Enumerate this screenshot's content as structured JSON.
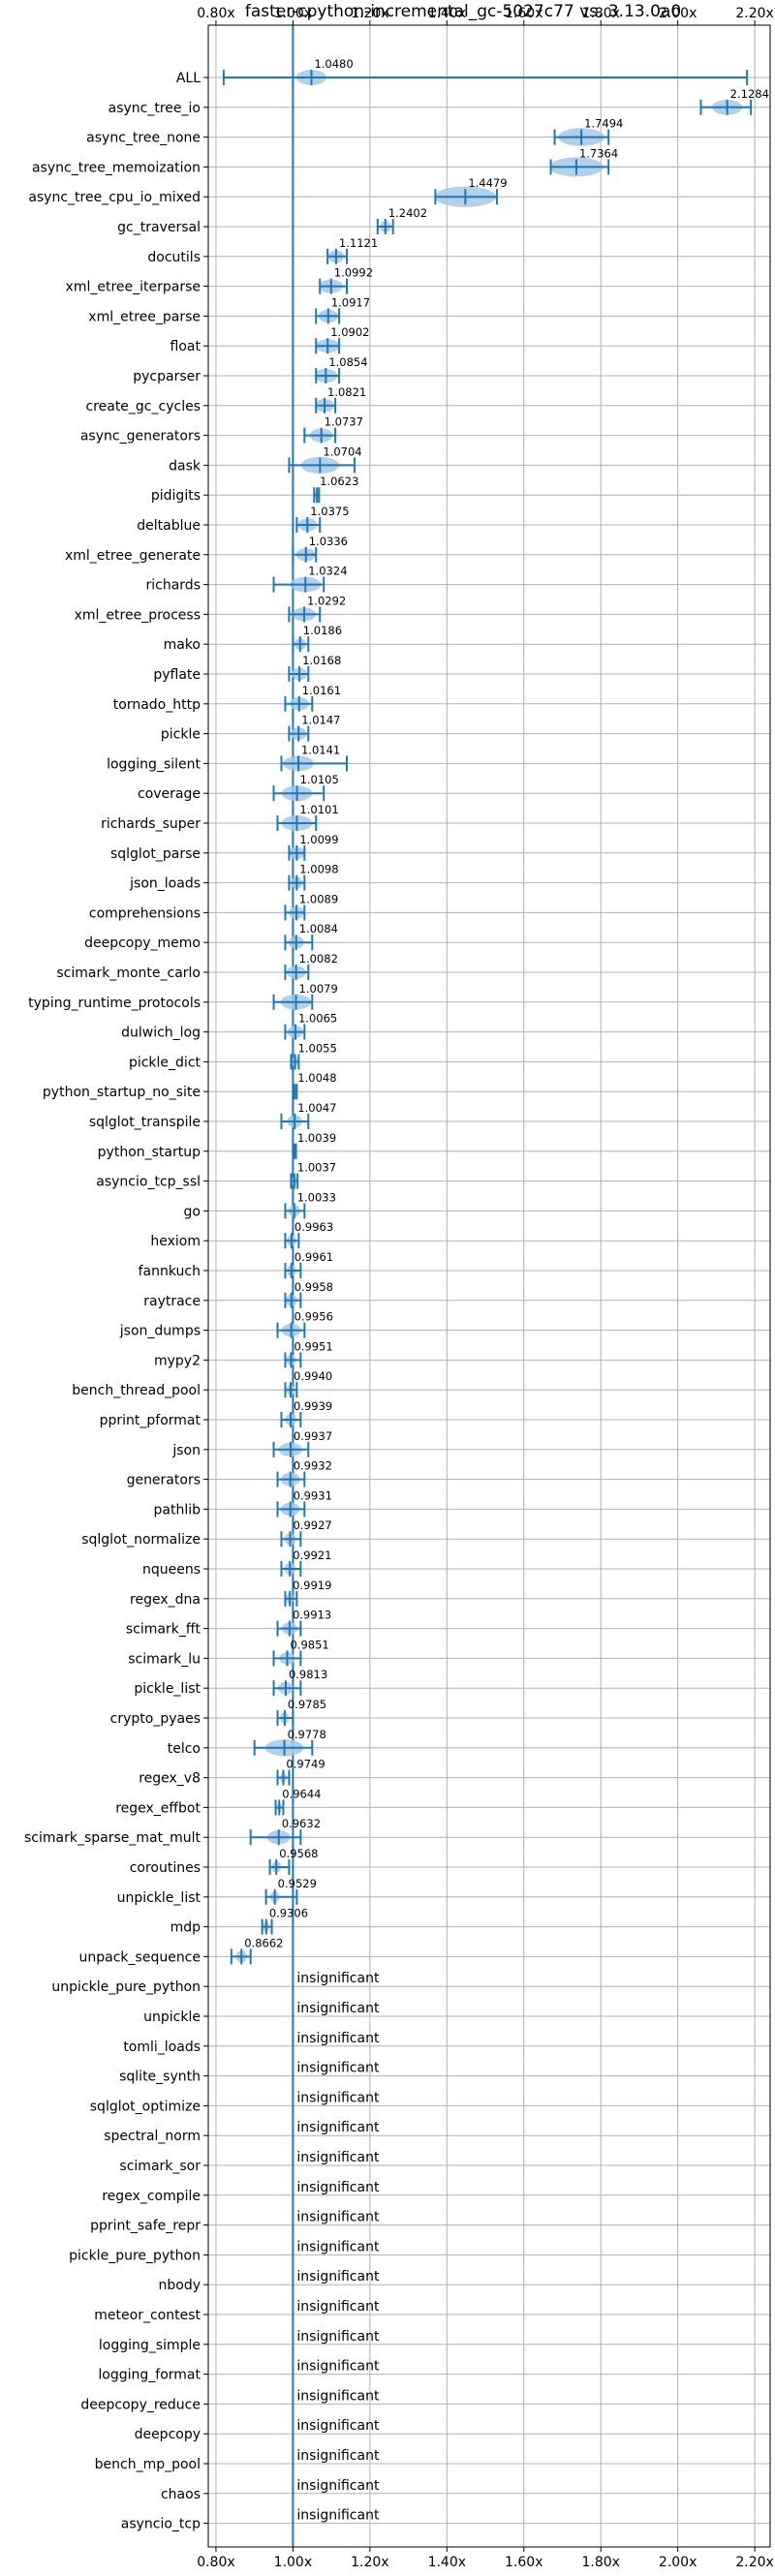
{
  "chart_data": {
    "type": "scatter",
    "title": "faster-cpython-incremental_gc-5027c77 vs. 3.13.0a0",
    "xlabel": "",
    "ylabel": "",
    "xlim": [
      0.78,
      2.24
    ],
    "x_ticks": [
      0.8,
      1.0,
      1.2,
      1.4,
      1.6,
      1.8,
      2.0,
      2.2
    ],
    "x_tick_labels": [
      "0.80x",
      "1.00x",
      "1.20x",
      "1.40x",
      "1.60x",
      "1.80x",
      "2.00x",
      "2.20x"
    ],
    "reference_line": 1.0,
    "grid": true,
    "colors": {
      "line": "#1f77b4",
      "violin": "#a6c8e6",
      "grid": "#b0b0b0"
    },
    "insignificant_text": "insignificant",
    "benchmarks": [
      {
        "name": "ALL",
        "value": 1.048,
        "label": "1.0480",
        "low": 0.82,
        "high": 2.18,
        "spread": 0.04
      },
      {
        "name": "async_tree_io",
        "value": 2.1284,
        "label": "2.1284",
        "low": 2.06,
        "high": 2.19,
        "spread": 0.04
      },
      {
        "name": "async_tree_none",
        "value": 1.7494,
        "label": "1.7494",
        "low": 1.68,
        "high": 1.82,
        "spread": 0.06
      },
      {
        "name": "async_tree_memoization",
        "value": 1.7364,
        "label": "1.7364",
        "low": 1.67,
        "high": 1.82,
        "spread": 0.07
      },
      {
        "name": "async_tree_cpu_io_mixed",
        "value": 1.4479,
        "label": "1.4479",
        "low": 1.37,
        "high": 1.53,
        "spread": 0.08
      },
      {
        "name": "gc_traversal",
        "value": 1.2402,
        "label": "1.2402",
        "low": 1.22,
        "high": 1.26,
        "spread": 0.015
      },
      {
        "name": "docutils",
        "value": 1.1121,
        "label": "1.1121",
        "low": 1.09,
        "high": 1.14,
        "spread": 0.02
      },
      {
        "name": "xml_etree_iterparse",
        "value": 1.0992,
        "label": "1.0992",
        "low": 1.07,
        "high": 1.14,
        "spread": 0.03
      },
      {
        "name": "xml_etree_parse",
        "value": 1.0917,
        "label": "1.0917",
        "low": 1.06,
        "high": 1.12,
        "spread": 0.025
      },
      {
        "name": "float",
        "value": 1.0902,
        "label": "1.0902",
        "low": 1.06,
        "high": 1.12,
        "spread": 0.03
      },
      {
        "name": "pycparser",
        "value": 1.0854,
        "label": "1.0854",
        "low": 1.06,
        "high": 1.12,
        "spread": 0.03
      },
      {
        "name": "create_gc_cycles",
        "value": 1.0821,
        "label": "1.0821",
        "low": 1.06,
        "high": 1.11,
        "spread": 0.025
      },
      {
        "name": "async_generators",
        "value": 1.0737,
        "label": "1.0737",
        "low": 1.03,
        "high": 1.11,
        "spread": 0.03
      },
      {
        "name": "dask",
        "value": 1.0704,
        "label": "1.0704",
        "low": 0.99,
        "high": 1.16,
        "spread": 0.05
      },
      {
        "name": "pidigits",
        "value": 1.0623,
        "label": "1.0623",
        "low": 1.055,
        "high": 1.068,
        "spread": 0.005
      },
      {
        "name": "deltablue",
        "value": 1.0375,
        "label": "1.0375",
        "low": 1.01,
        "high": 1.07,
        "spread": 0.025
      },
      {
        "name": "xml_etree_generate",
        "value": 1.0336,
        "label": "1.0336",
        "low": 1.0,
        "high": 1.06,
        "spread": 0.025
      },
      {
        "name": "richards",
        "value": 1.0324,
        "label": "1.0324",
        "low": 0.95,
        "high": 1.08,
        "spread": 0.04
      },
      {
        "name": "xml_etree_process",
        "value": 1.0292,
        "label": "1.0292",
        "low": 0.99,
        "high": 1.07,
        "spread": 0.03
      },
      {
        "name": "mako",
        "value": 1.0186,
        "label": "1.0186",
        "low": 1.0,
        "high": 1.04,
        "spread": 0.015
      },
      {
        "name": "pyflate",
        "value": 1.0168,
        "label": "1.0168",
        "low": 0.99,
        "high": 1.04,
        "spread": 0.02
      },
      {
        "name": "tornado_http",
        "value": 1.0161,
        "label": "1.0161",
        "low": 0.98,
        "high": 1.05,
        "spread": 0.025
      },
      {
        "name": "pickle",
        "value": 1.0147,
        "label": "1.0147",
        "low": 0.99,
        "high": 1.04,
        "spread": 0.02
      },
      {
        "name": "logging_silent",
        "value": 1.0141,
        "label": "1.0141",
        "low": 0.97,
        "high": 1.14,
        "spread": 0.04
      },
      {
        "name": "coverage",
        "value": 1.0105,
        "label": "1.0105",
        "low": 0.95,
        "high": 1.08,
        "spread": 0.04
      },
      {
        "name": "richards_super",
        "value": 1.0101,
        "label": "1.0101",
        "low": 0.96,
        "high": 1.06,
        "spread": 0.04
      },
      {
        "name": "sqlglot_parse",
        "value": 1.0099,
        "label": "1.0099",
        "low": 0.99,
        "high": 1.03,
        "spread": 0.02
      },
      {
        "name": "json_loads",
        "value": 1.0098,
        "label": "1.0098",
        "low": 0.99,
        "high": 1.03,
        "spread": 0.015
      },
      {
        "name": "comprehensions",
        "value": 1.0089,
        "label": "1.0089",
        "low": 0.98,
        "high": 1.03,
        "spread": 0.02
      },
      {
        "name": "deepcopy_memo",
        "value": 1.0084,
        "label": "1.0084",
        "low": 0.98,
        "high": 1.05,
        "spread": 0.02
      },
      {
        "name": "scimark_monte_carlo",
        "value": 1.0082,
        "label": "1.0082",
        "low": 0.98,
        "high": 1.04,
        "spread": 0.025
      },
      {
        "name": "typing_runtime_protocols",
        "value": 1.0079,
        "label": "1.0079",
        "low": 0.95,
        "high": 1.05,
        "spread": 0.04
      },
      {
        "name": "dulwich_log",
        "value": 1.0065,
        "label": "1.0065",
        "low": 0.98,
        "high": 1.03,
        "spread": 0.02
      },
      {
        "name": "pickle_dict",
        "value": 1.0055,
        "label": "1.0055",
        "low": 0.995,
        "high": 1.015,
        "spread": 0.008
      },
      {
        "name": "python_startup_no_site",
        "value": 1.0048,
        "label": "1.0048",
        "low": 1.0,
        "high": 1.01,
        "spread": 0.003
      },
      {
        "name": "sqlglot_transpile",
        "value": 1.0047,
        "label": "1.0047",
        "low": 0.97,
        "high": 1.04,
        "spread": 0.02
      },
      {
        "name": "python_startup",
        "value": 1.0039,
        "label": "1.0039",
        "low": 1.0,
        "high": 1.008,
        "spread": 0.003
      },
      {
        "name": "asyncio_tcp_ssl",
        "value": 1.0037,
        "label": "1.0037",
        "low": 0.995,
        "high": 1.012,
        "spread": 0.006
      },
      {
        "name": "go",
        "value": 1.0033,
        "label": "1.0033",
        "low": 0.98,
        "high": 1.03,
        "spread": 0.015
      },
      {
        "name": "hexiom",
        "value": 0.9963,
        "label": "0.9963",
        "low": 0.98,
        "high": 1.015,
        "spread": 0.012
      },
      {
        "name": "fannkuch",
        "value": 0.9961,
        "label": "0.9961",
        "low": 0.98,
        "high": 1.02,
        "spread": 0.012
      },
      {
        "name": "raytrace",
        "value": 0.9958,
        "label": "0.9958",
        "low": 0.98,
        "high": 1.02,
        "spread": 0.015
      },
      {
        "name": "json_dumps",
        "value": 0.9956,
        "label": "0.9956",
        "low": 0.96,
        "high": 1.03,
        "spread": 0.025
      },
      {
        "name": "mypy2",
        "value": 0.9951,
        "label": "0.9951",
        "low": 0.98,
        "high": 1.02,
        "spread": 0.012
      },
      {
        "name": "bench_thread_pool",
        "value": 0.994,
        "label": "0.9940",
        "low": 0.98,
        "high": 1.01,
        "spread": 0.01
      },
      {
        "name": "pprint_pformat",
        "value": 0.9939,
        "label": "0.9939",
        "low": 0.97,
        "high": 1.02,
        "spread": 0.015
      },
      {
        "name": "json",
        "value": 0.9937,
        "label": "0.9937",
        "low": 0.95,
        "high": 1.04,
        "spread": 0.03
      },
      {
        "name": "generators",
        "value": 0.9932,
        "label": "0.9932",
        "low": 0.96,
        "high": 1.03,
        "spread": 0.025
      },
      {
        "name": "pathlib",
        "value": 0.9931,
        "label": "0.9931",
        "low": 0.96,
        "high": 1.03,
        "spread": 0.025
      },
      {
        "name": "sqlglot_normalize",
        "value": 0.9927,
        "label": "0.9927",
        "low": 0.97,
        "high": 1.02,
        "spread": 0.015
      },
      {
        "name": "nqueens",
        "value": 0.9921,
        "label": "0.9921",
        "low": 0.97,
        "high": 1.02,
        "spread": 0.015
      },
      {
        "name": "regex_dna",
        "value": 0.9919,
        "label": "0.9919",
        "low": 0.98,
        "high": 1.01,
        "spread": 0.01
      },
      {
        "name": "scimark_fft",
        "value": 0.9913,
        "label": "0.9913",
        "low": 0.96,
        "high": 1.02,
        "spread": 0.02
      },
      {
        "name": "scimark_lu",
        "value": 0.9851,
        "label": "0.9851",
        "low": 0.95,
        "high": 1.02,
        "spread": 0.02
      },
      {
        "name": "pickle_list",
        "value": 0.9813,
        "label": "0.9813",
        "low": 0.95,
        "high": 1.02,
        "spread": 0.02
      },
      {
        "name": "crypto_pyaes",
        "value": 0.9785,
        "label": "0.9785",
        "low": 0.96,
        "high": 1.0,
        "spread": 0.012
      },
      {
        "name": "telco",
        "value": 0.9778,
        "label": "0.9778",
        "low": 0.9,
        "high": 1.05,
        "spread": 0.05
      },
      {
        "name": "regex_v8",
        "value": 0.9749,
        "label": "0.9749",
        "low": 0.96,
        "high": 0.99,
        "spread": 0.008
      },
      {
        "name": "regex_effbot",
        "value": 0.9644,
        "label": "0.9644",
        "low": 0.955,
        "high": 0.975,
        "spread": 0.006
      },
      {
        "name": "scimark_sparse_mat_mult",
        "value": 0.9632,
        "label": "0.9632",
        "low": 0.89,
        "high": 1.02,
        "spread": 0.03
      },
      {
        "name": "coroutines",
        "value": 0.9568,
        "label": "0.9568",
        "low": 0.94,
        "high": 0.99,
        "spread": 0.012
      },
      {
        "name": "unpickle_list",
        "value": 0.9529,
        "label": "0.9529",
        "low": 0.93,
        "high": 1.01,
        "spread": 0.012
      },
      {
        "name": "mdp",
        "value": 0.9306,
        "label": "0.9306",
        "low": 0.92,
        "high": 0.945,
        "spread": 0.008
      },
      {
        "name": "unpack_sequence",
        "value": 0.8662,
        "label": "0.8662",
        "low": 0.84,
        "high": 0.89,
        "spread": 0.015
      },
      {
        "name": "unpickle_pure_python",
        "insignificant": true
      },
      {
        "name": "unpickle",
        "insignificant": true
      },
      {
        "name": "tomli_loads",
        "insignificant": true
      },
      {
        "name": "sqlite_synth",
        "insignificant": true
      },
      {
        "name": "sqlglot_optimize",
        "insignificant": true
      },
      {
        "name": "spectral_norm",
        "insignificant": true
      },
      {
        "name": "scimark_sor",
        "insignificant": true
      },
      {
        "name": "regex_compile",
        "insignificant": true
      },
      {
        "name": "pprint_safe_repr",
        "insignificant": true
      },
      {
        "name": "pickle_pure_python",
        "insignificant": true
      },
      {
        "name": "nbody",
        "insignificant": true
      },
      {
        "name": "meteor_contest",
        "insignificant": true
      },
      {
        "name": "logging_simple",
        "insignificant": true
      },
      {
        "name": "logging_format",
        "insignificant": true
      },
      {
        "name": "deepcopy_reduce",
        "insignificant": true
      },
      {
        "name": "deepcopy",
        "insignificant": true
      },
      {
        "name": "bench_mp_pool",
        "insignificant": true
      },
      {
        "name": "chaos",
        "insignificant": true
      },
      {
        "name": "asyncio_tcp",
        "insignificant": true
      }
    ]
  }
}
